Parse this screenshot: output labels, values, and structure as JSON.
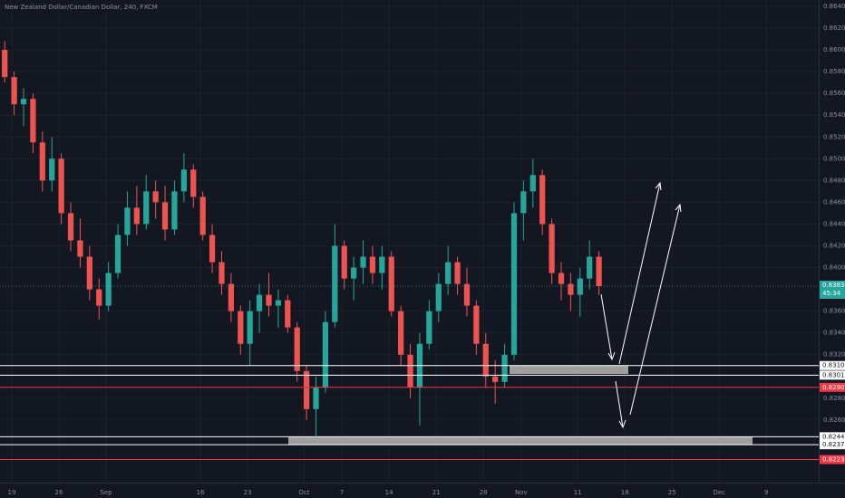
{
  "chart_data": {
    "type": "candlestick",
    "title": "New Zealand Dollar/Canadian Dollar, 240, FXCM",
    "up_color": "#26a69a",
    "down_color": "#ef5350",
    "grid": true,
    "xlim": [
      0,
      86.8
    ],
    "ylim": [
      0.82025,
      0.86458
    ],
    "xticks": [
      {
        "value": 1.25,
        "label": "19"
      },
      {
        "value": 6.25,
        "label": "26"
      },
      {
        "value": 11.25,
        "label": "Sep"
      },
      {
        "value": 21.25,
        "label": "16"
      },
      {
        "value": 26.25,
        "label": "23"
      },
      {
        "value": 32.25,
        "label": "Oct"
      },
      {
        "value": 36.25,
        "label": "7"
      },
      {
        "value": 41.25,
        "label": "14"
      },
      {
        "value": 46.25,
        "label": "21"
      },
      {
        "value": 51.25,
        "label": "28"
      },
      {
        "value": 55.25,
        "label": "Nov"
      },
      {
        "value": 61.25,
        "label": "11"
      },
      {
        "value": 66.25,
        "label": "18"
      },
      {
        "value": 71.25,
        "label": "25"
      },
      {
        "value": 76.25,
        "label": "Dec"
      },
      {
        "value": 81.25,
        "label": "9"
      }
    ],
    "yticks": [
      {
        "value": 0.864,
        "label": "0.86400"
      },
      {
        "value": 0.862,
        "label": "0.86200"
      },
      {
        "value": 0.86,
        "label": "0.86000"
      },
      {
        "value": 0.858,
        "label": "0.85800"
      },
      {
        "value": 0.856,
        "label": "0.85600"
      },
      {
        "value": 0.854,
        "label": "0.85400"
      },
      {
        "value": 0.852,
        "label": "0.85200"
      },
      {
        "value": 0.85,
        "label": "0.85000"
      },
      {
        "value": 0.848,
        "label": "0.84800"
      },
      {
        "value": 0.846,
        "label": "0.84600"
      },
      {
        "value": 0.844,
        "label": "0.84400"
      },
      {
        "value": 0.842,
        "label": "0.84200"
      },
      {
        "value": 0.84,
        "label": "0.84000"
      },
      {
        "value": 0.836,
        "label": "0.83600"
      },
      {
        "value": 0.834,
        "label": "0.83400"
      },
      {
        "value": 0.832,
        "label": "0.83200"
      },
      {
        "value": 0.828,
        "label": "0.82800"
      },
      {
        "value": 0.826,
        "label": "0.82600"
      }
    ],
    "ohlc": [
      [
        0.86,
        0.8608,
        0.857,
        0.8575
      ],
      [
        0.8575,
        0.858,
        0.854,
        0.855
      ],
      [
        0.855,
        0.8565,
        0.853,
        0.8555
      ],
      [
        0.8555,
        0.856,
        0.8505,
        0.8515
      ],
      [
        0.8515,
        0.8525,
        0.847,
        0.848
      ],
      [
        0.848,
        0.852,
        0.847,
        0.85
      ],
      [
        0.85,
        0.8505,
        0.844,
        0.845
      ],
      [
        0.845,
        0.846,
        0.8415,
        0.8425
      ],
      [
        0.8425,
        0.8445,
        0.84,
        0.841
      ],
      [
        0.841,
        0.842,
        0.837,
        0.838
      ],
      [
        0.838,
        0.839,
        0.8352,
        0.8365
      ],
      [
        0.8365,
        0.8405,
        0.836,
        0.8395
      ],
      [
        0.8395,
        0.844,
        0.839,
        0.843
      ],
      [
        0.843,
        0.847,
        0.842,
        0.8455
      ],
      [
        0.8455,
        0.8475,
        0.843,
        0.844
      ],
      [
        0.844,
        0.8485,
        0.8435,
        0.847
      ],
      [
        0.847,
        0.848,
        0.8445,
        0.846
      ],
      [
        0.846,
        0.8475,
        0.8425,
        0.8435
      ],
      [
        0.8435,
        0.848,
        0.843,
        0.847
      ],
      [
        0.847,
        0.8505,
        0.846,
        0.849
      ],
      [
        0.849,
        0.8495,
        0.8455,
        0.8465
      ],
      [
        0.8465,
        0.847,
        0.8425,
        0.843
      ],
      [
        0.843,
        0.844,
        0.8395,
        0.8405
      ],
      [
        0.8405,
        0.8415,
        0.8375,
        0.8385
      ],
      [
        0.8385,
        0.8395,
        0.835,
        0.836
      ],
      [
        0.836,
        0.8365,
        0.832,
        0.833
      ],
      [
        0.833,
        0.837,
        0.831,
        0.836
      ],
      [
        0.836,
        0.8385,
        0.834,
        0.8375
      ],
      [
        0.8375,
        0.8395,
        0.8355,
        0.8365
      ],
      [
        0.8365,
        0.838,
        0.8345,
        0.837
      ],
      [
        0.837,
        0.8375,
        0.834,
        0.8345
      ],
      [
        0.8345,
        0.835,
        0.8295,
        0.8305
      ],
      [
        0.8305,
        0.831,
        0.826,
        0.827
      ],
      [
        0.827,
        0.83,
        0.8245,
        0.829
      ],
      [
        0.829,
        0.836,
        0.8285,
        0.835
      ],
      [
        0.835,
        0.844,
        0.8345,
        0.842
      ],
      [
        0.842,
        0.8425,
        0.838,
        0.839
      ],
      [
        0.839,
        0.841,
        0.837,
        0.84
      ],
      [
        0.84,
        0.8425,
        0.8385,
        0.841
      ],
      [
        0.841,
        0.842,
        0.8385,
        0.8395
      ],
      [
        0.8395,
        0.842,
        0.838,
        0.841
      ],
      [
        0.841,
        0.8415,
        0.8355,
        0.836
      ],
      [
        0.836,
        0.8365,
        0.831,
        0.832
      ],
      [
        0.832,
        0.833,
        0.828,
        0.829
      ],
      [
        0.829,
        0.834,
        0.8255,
        0.833
      ],
      [
        0.833,
        0.837,
        0.8325,
        0.836
      ],
      [
        0.836,
        0.8395,
        0.835,
        0.8385
      ],
      [
        0.8385,
        0.842,
        0.8375,
        0.8405
      ],
      [
        0.8405,
        0.841,
        0.8375,
        0.8385
      ],
      [
        0.8385,
        0.84,
        0.8355,
        0.8365
      ],
      [
        0.8365,
        0.837,
        0.832,
        0.833
      ],
      [
        0.833,
        0.834,
        0.829,
        0.83
      ],
      [
        0.83,
        0.8315,
        0.8275,
        0.8295
      ],
      [
        0.8295,
        0.833,
        0.829,
        0.832
      ],
      [
        0.832,
        0.846,
        0.8315,
        0.845
      ],
      [
        0.845,
        0.848,
        0.8425,
        0.847
      ],
      [
        0.847,
        0.85,
        0.8455,
        0.8485
      ],
      [
        0.8485,
        0.849,
        0.843,
        0.844
      ],
      [
        0.844,
        0.8445,
        0.8385,
        0.8395
      ],
      [
        0.8395,
        0.8405,
        0.837,
        0.8385
      ],
      [
        0.8385,
        0.8395,
        0.836,
        0.8375
      ],
      [
        0.8375,
        0.84,
        0.8355,
        0.839
      ],
      [
        0.839,
        0.8425,
        0.838,
        0.841
      ],
      [
        0.841,
        0.8415,
        0.8375,
        0.8383
      ]
    ],
    "levels": [
      {
        "value": 0.831,
        "label": "0.83100",
        "color": "#ffffff"
      },
      {
        "value": 0.83012,
        "label": "0.83012",
        "color": "#ffffff"
      },
      {
        "value": 0.829,
        "label": "0.82900",
        "color": "#f23645"
      },
      {
        "value": 0.82446,
        "label": "0.82446",
        "color": "#ffffff"
      },
      {
        "value": 0.82373,
        "label": "0.82373",
        "color": "#ffffff"
      },
      {
        "value": 0.82237,
        "label": "0.82237",
        "color": "#f23645"
      }
    ],
    "current_price": {
      "value": 0.8383,
      "label": "0.83830",
      "countdown": "45:34",
      "color": "#26a69a"
    }
  }
}
